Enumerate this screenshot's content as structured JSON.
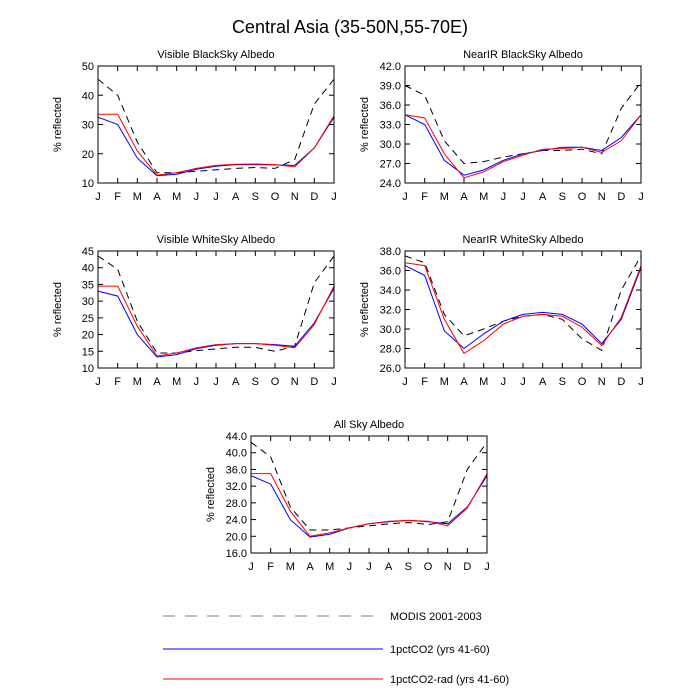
{
  "figure": {
    "title": "Central Asia (35-50N,55-70E)"
  },
  "months": [
    "J",
    "F",
    "M",
    "A",
    "M",
    "J",
    "J",
    "A",
    "S",
    "O",
    "N",
    "D",
    "J"
  ],
  "colors": {
    "modis": "#000000",
    "pctco2": "#0000ff",
    "pctco2_rad": "#ff0000"
  },
  "legend": [
    {
      "key": "modis",
      "label": "MODIS 2001-2003",
      "style": "dashed"
    },
    {
      "key": "pctco2",
      "label": "1pctCO2 (yrs 41-60)",
      "style": "solid"
    },
    {
      "key": "pctco2_rad",
      "label": "1pctCO2-rad (yrs 41-60)",
      "style": "solid"
    }
  ],
  "chart_data": [
    {
      "type": "line",
      "title": "Visible BlackSky Albedo",
      "ylabel": "% reflected",
      "ylim": [
        10,
        50
      ],
      "yticks": [
        10,
        20,
        30,
        40,
        50
      ],
      "ytick_labels": [
        "10",
        "20",
        "30",
        "40",
        "50"
      ],
      "series": [
        {
          "key": "modis",
          "name": "MODIS 2001-2003",
          "values": [
            45.5,
            40.0,
            24.0,
            13.5,
            13.5,
            14.0,
            14.5,
            15.0,
            15.3,
            15.0,
            18.0,
            37.0,
            45.5
          ]
        },
        {
          "key": "pctco2",
          "name": "1pctCO2 (yrs 41-60)",
          "values": [
            32.5,
            30.0,
            18.5,
            12.5,
            13.0,
            14.7,
            15.7,
            16.3,
            16.3,
            16.2,
            16.0,
            22.0,
            32.5
          ]
        },
        {
          "key": "pctco2_rad",
          "name": "1pctCO2-rad (yrs 41-60)",
          "values": [
            33.5,
            33.5,
            21.0,
            12.7,
            13.5,
            15.0,
            16.0,
            16.4,
            16.5,
            16.3,
            15.5,
            22.0,
            33.0
          ]
        }
      ]
    },
    {
      "type": "line",
      "title": "NearIR BlackSky Albedo",
      "ylabel": "% reflected",
      "ylim": [
        24,
        42
      ],
      "yticks": [
        24,
        27,
        30,
        33,
        36,
        39,
        42
      ],
      "ytick_labels": [
        "24.0",
        "27.0",
        "30.0",
        "33.0",
        "36.0",
        "39.0",
        "42.0"
      ],
      "series": [
        {
          "key": "modis",
          "name": "MODIS 2001-2003",
          "values": [
            39.0,
            37.5,
            30.5,
            27.0,
            27.3,
            28.0,
            28.5,
            29.0,
            29.0,
            29.2,
            28.5,
            35.5,
            39.5
          ]
        },
        {
          "key": "pctco2",
          "name": "1pctCO2 (yrs 41-60)",
          "values": [
            34.5,
            33.0,
            27.5,
            25.2,
            26.0,
            27.5,
            28.5,
            29.0,
            29.5,
            29.5,
            29.0,
            31.0,
            34.5
          ]
        },
        {
          "key": "pctco2_rad",
          "name": "1pctCO2-rad (yrs 41-60)",
          "values": [
            34.5,
            34.0,
            28.5,
            24.8,
            25.7,
            27.3,
            28.3,
            29.2,
            29.3,
            29.5,
            28.7,
            30.5,
            34.5
          ]
        }
      ]
    },
    {
      "type": "line",
      "title": "Visible WhiteSky Albedo",
      "ylabel": "% reflected",
      "ylim": [
        10,
        45
      ],
      "yticks": [
        10,
        15,
        20,
        25,
        30,
        35,
        40,
        45
      ],
      "ytick_labels": [
        "10",
        "15",
        "20",
        "25",
        "30",
        "35",
        "40",
        "45"
      ],
      "series": [
        {
          "key": "modis",
          "name": "MODIS 2001-2003",
          "values": [
            43.5,
            39.5,
            24.0,
            14.5,
            14.5,
            15.2,
            15.7,
            16.2,
            16.2,
            15.0,
            16.5,
            35.5,
            43.5
          ]
        },
        {
          "key": "pctco2",
          "name": "1pctCO2 (yrs 41-60)",
          "values": [
            33.0,
            31.5,
            20.0,
            13.3,
            14.0,
            15.8,
            16.8,
            17.3,
            17.3,
            17.0,
            16.5,
            23.5,
            33.8
          ]
        },
        {
          "key": "pctco2_rad",
          "name": "1pctCO2-rad (yrs 41-60)",
          "values": [
            34.5,
            34.5,
            22.5,
            13.6,
            14.5,
            16.0,
            17.0,
            17.3,
            17.3,
            16.8,
            16.0,
            23.0,
            34.5
          ]
        }
      ]
    },
    {
      "type": "line",
      "title": "NearIR WhiteSky Albedo",
      "ylabel": "% reflected",
      "ylim": [
        26,
        38
      ],
      "yticks": [
        26,
        28,
        30,
        32,
        34,
        36,
        38
      ],
      "ytick_labels": [
        "26.0",
        "28.0",
        "30.0",
        "32.0",
        "34.0",
        "36.0",
        "38.0"
      ],
      "series": [
        {
          "key": "modis",
          "name": "MODIS 2001-2003",
          "values": [
            37.5,
            36.8,
            31.5,
            29.3,
            30.0,
            30.8,
            31.3,
            31.5,
            31.0,
            29.0,
            27.8,
            34.0,
            37.5
          ]
        },
        {
          "key": "pctco2",
          "name": "1pctCO2 (yrs 41-60)",
          "values": [
            36.5,
            35.5,
            29.8,
            28.0,
            29.5,
            30.8,
            31.5,
            31.7,
            31.5,
            30.5,
            28.5,
            31.0,
            36.3
          ]
        },
        {
          "key": "pctco2_rad",
          "name": "1pctCO2-rad (yrs 41-60)",
          "values": [
            36.8,
            36.5,
            31.0,
            27.5,
            28.8,
            30.5,
            31.3,
            31.5,
            31.3,
            30.2,
            28.3,
            31.2,
            36.5
          ]
        }
      ]
    },
    {
      "type": "line",
      "title": "All Sky Albedo",
      "ylabel": "% reflected",
      "ylim": [
        16,
        44
      ],
      "yticks": [
        16,
        20,
        24,
        28,
        32,
        36,
        40,
        44
      ],
      "ytick_labels": [
        "16.0",
        "20.0",
        "24.0",
        "28.0",
        "32.0",
        "36.0",
        "40.0",
        "44.0"
      ],
      "series": [
        {
          "key": "modis",
          "name": "MODIS 2001-2003",
          "values": [
            42.5,
            39.0,
            27.0,
            21.5,
            21.5,
            22.0,
            22.5,
            23.0,
            23.3,
            22.8,
            23.5,
            36.0,
            42.5
          ]
        },
        {
          "key": "pctco2",
          "name": "1pctCO2 (yrs 41-60)",
          "values": [
            34.5,
            32.5,
            24.0,
            19.8,
            20.5,
            22.0,
            23.0,
            23.5,
            23.8,
            23.5,
            23.0,
            27.0,
            34.5
          ]
        },
        {
          "key": "pctco2_rad",
          "name": "1pctCO2-rad (yrs 41-60)",
          "values": [
            35.0,
            35.0,
            26.0,
            20.0,
            20.8,
            22.0,
            23.0,
            23.6,
            23.8,
            23.6,
            22.5,
            26.8,
            35.0
          ]
        }
      ]
    }
  ]
}
